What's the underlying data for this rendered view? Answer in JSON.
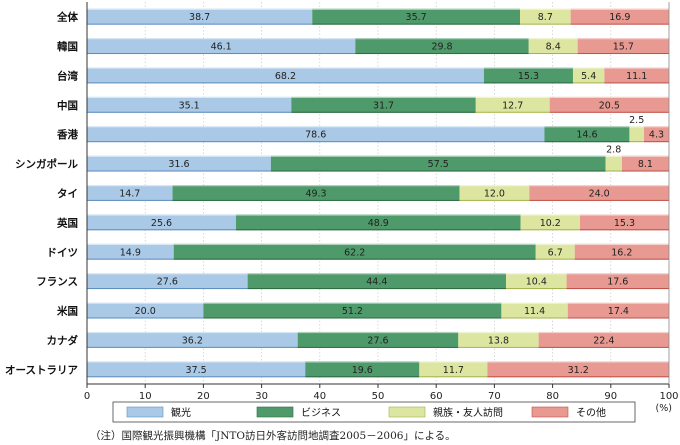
{
  "chart_data": {
    "type": "bar",
    "orientation": "horizontal",
    "stacked": true,
    "percent": true,
    "categories": [
      "全体",
      "韓国",
      "台湾",
      "中国",
      "香港",
      "シンガポール",
      "タイ",
      "英国",
      "ドイツ",
      "フランス",
      "米国",
      "カナダ",
      "オーストラリア"
    ],
    "series": [
      {
        "name": "観光",
        "color": "#a9c9e6",
        "values": [
          38.7,
          46.1,
          68.2,
          35.1,
          78.6,
          31.6,
          14.7,
          25.6,
          14.9,
          27.6,
          20.0,
          36.2,
          37.5
        ]
      },
      {
        "name": "ビジネス",
        "color": "#4f9a6a",
        "values": [
          35.7,
          29.8,
          15.3,
          31.7,
          14.6,
          57.5,
          49.3,
          48.9,
          62.2,
          44.4,
          51.2,
          27.6,
          19.6
        ]
      },
      {
        "name": "親族・友人訪問",
        "color": "#dde6a0",
        "values": [
          8.7,
          8.4,
          5.4,
          12.7,
          2.5,
          2.8,
          12.0,
          10.2,
          6.7,
          10.4,
          11.4,
          13.8,
          11.7
        ]
      },
      {
        "name": "その他",
        "color": "#e89a92",
        "values": [
          16.9,
          15.7,
          11.1,
          20.5,
          4.3,
          8.1,
          24.0,
          15.3,
          16.2,
          17.6,
          17.4,
          22.4,
          31.2
        ]
      }
    ],
    "value_labels": [
      [
        "38.7",
        "35.7",
        "8.7",
        "16.9"
      ],
      [
        "46.1",
        "29.8",
        "8.4",
        "15.7"
      ],
      [
        "68.2",
        "15.3",
        "5.4",
        "11.1"
      ],
      [
        "35.1",
        "31.7",
        "12.7",
        "20.5"
      ],
      [
        "78.6",
        "14.6",
        "2.5",
        "4.3"
      ],
      [
        "31.6",
        "57.5",
        "2.8",
        "8.1"
      ],
      [
        "14.7",
        "49.3",
        "12.0",
        "24.0"
      ],
      [
        "25.6",
        "48.9",
        "10.2",
        "15.3"
      ],
      [
        "14.9",
        "62.2",
        "6.7",
        "16.2"
      ],
      [
        "27.6",
        "44.4",
        "10.4",
        "17.6"
      ],
      [
        "20.0",
        "51.2",
        "11.4",
        "17.4"
      ],
      [
        "36.2",
        "27.6",
        "13.8",
        "22.4"
      ],
      [
        "37.5",
        "19.6",
        "11.7",
        "31.2"
      ]
    ],
    "xlim": [
      0,
      100
    ],
    "xticks": [
      0,
      10,
      20,
      30,
      40,
      50,
      60,
      70,
      80,
      90,
      100
    ],
    "xlabel": "(%)",
    "legend_position": "bottom",
    "grid": "vertical"
  },
  "note": "（注）国際観光振興機構「JNTO訪日外客訪問地調査2005－2006」による。"
}
